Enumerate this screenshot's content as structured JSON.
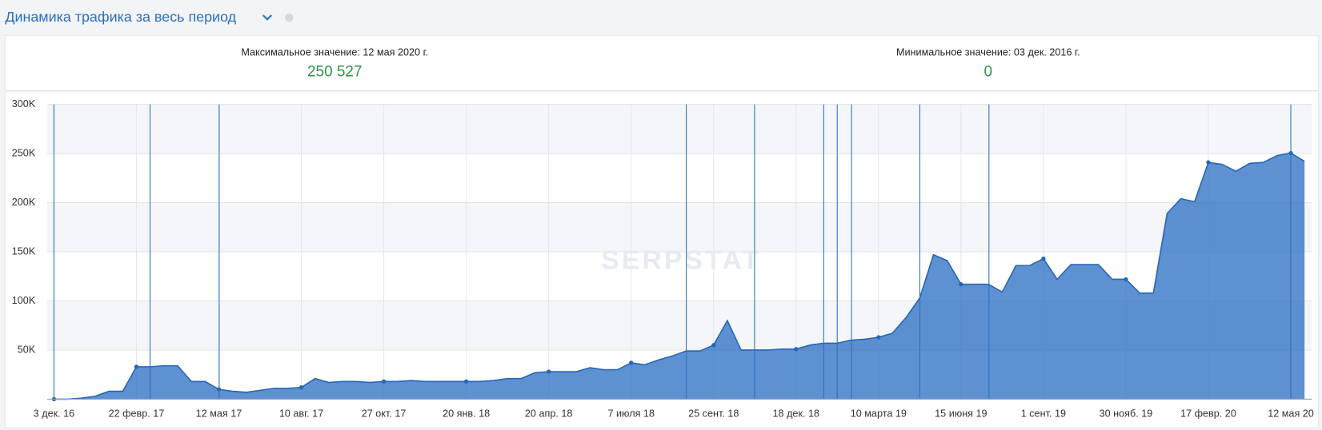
{
  "chart_data": {
    "type": "area",
    "title": "Динамика трафика за весь период",
    "max_label": "Максимальное значение: 12 мая 2020 г.",
    "max_value": "250 527",
    "min_label": "Минимальное значение: 03 дек. 2016 г.",
    "min_value": "0",
    "watermark": "SERPSTAT",
    "categories": [
      "3 дек. 16",
      null,
      null,
      null,
      null,
      null,
      "22 февр. 17",
      null,
      null,
      null,
      null,
      null,
      "12 мая 17",
      null,
      null,
      null,
      null,
      null,
      "10 авг. 17",
      null,
      null,
      null,
      null,
      null,
      "27 окт. 17",
      null,
      null,
      null,
      null,
      null,
      "20 янв. 18",
      null,
      null,
      null,
      null,
      null,
      "20 апр. 18",
      null,
      null,
      null,
      null,
      null,
      "7 июля 18",
      null,
      null,
      null,
      null,
      null,
      "25 сент. 18",
      null,
      null,
      null,
      null,
      null,
      "18 дек. 18",
      null,
      null,
      null,
      null,
      null,
      "10 марта 19",
      null,
      null,
      null,
      null,
      null,
      "15 июня 19",
      null,
      null,
      null,
      null,
      null,
      "1 сент. 19",
      null,
      null,
      null,
      null,
      null,
      "30 нояб. 19",
      null,
      null,
      null,
      null,
      null,
      "17 февр. 20",
      null,
      null,
      null,
      null,
      null,
      "12 мая 20",
      null
    ],
    "values": [
      0,
      0,
      1000,
      3000,
      8000,
      8000,
      33000,
      33000,
      34000,
      34000,
      18000,
      18000,
      10000,
      8000,
      7000,
      9000,
      11000,
      11000,
      12000,
      21000,
      17000,
      18000,
      18000,
      17000,
      18000,
      18000,
      19000,
      18000,
      18000,
      18000,
      18000,
      18000,
      19000,
      21000,
      21000,
      27000,
      28000,
      28000,
      28000,
      32000,
      30000,
      30000,
      37000,
      35000,
      40000,
      44000,
      49000,
      49000,
      55000,
      80000,
      50000,
      50000,
      50000,
      51000,
      51000,
      55000,
      57000,
      57000,
      60000,
      61000,
      63000,
      67000,
      83000,
      103000,
      147000,
      141000,
      117000,
      117000,
      117000,
      109000,
      136000,
      136000,
      143000,
      122000,
      137000,
      137000,
      137000,
      122000,
      122000,
      108000,
      108000,
      189000,
      204000,
      201000,
      241000,
      239000,
      232000,
      240000,
      241000,
      248000,
      250527,
      242000
    ],
    "color": "#2f72c4",
    "ylim": [
      0,
      300000
    ],
    "yticks": [
      {
        "value": 50000,
        "label": "50K"
      },
      {
        "value": 100000,
        "label": "100K"
      },
      {
        "value": 150000,
        "label": "150K"
      },
      {
        "value": 200000,
        "label": "200K"
      },
      {
        "value": 250000,
        "label": "250K"
      },
      {
        "value": 300000,
        "label": "300K"
      }
    ],
    "grid": true
  }
}
